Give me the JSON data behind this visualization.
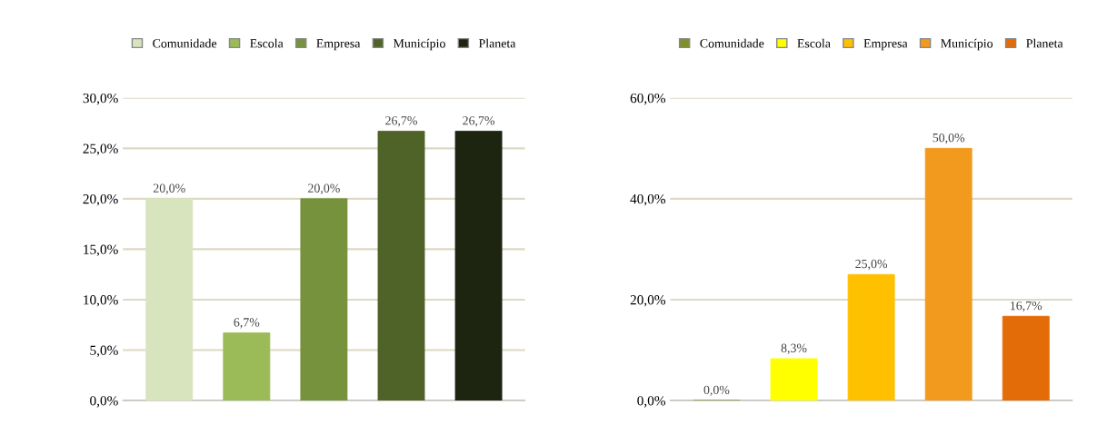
{
  "chart_data": [
    {
      "type": "bar",
      "categories": [
        null,
        null,
        null,
        null,
        null
      ],
      "legend": "top",
      "grid": "y",
      "ylim": [
        0,
        30
      ],
      "yticks": [
        {
          "value": 0,
          "label": "0,0%"
        },
        {
          "value": 5,
          "label": "5,0%"
        },
        {
          "value": 10,
          "label": "10,0%"
        },
        {
          "value": 15,
          "label": "15,0%"
        },
        {
          "value": 20,
          "label": "20,0%"
        },
        {
          "value": 25,
          "label": "25,0%"
        },
        {
          "value": 30,
          "label": "30,0%"
        }
      ],
      "series": [
        {
          "name": "Comunidade",
          "color": "#d7e4bd",
          "values": [
            20.0,
            null,
            null,
            null,
            null
          ],
          "value_labels": [
            "20,0%",
            null,
            null,
            null,
            null
          ]
        },
        {
          "name": "Escola",
          "color": "#9bbb59",
          "values": [
            null,
            6.7,
            null,
            null,
            null
          ],
          "value_labels": [
            null,
            "6,7%",
            null,
            null,
            null
          ]
        },
        {
          "name": "Empresa",
          "color": "#76923c",
          "values": [
            null,
            null,
            20.0,
            null,
            null
          ],
          "value_labels": [
            null,
            null,
            "20,0%",
            null,
            null
          ]
        },
        {
          "name": "Município",
          "color": "#4f6228",
          "values": [
            null,
            null,
            null,
            26.7,
            null
          ],
          "value_labels": [
            null,
            null,
            null,
            "26,7%",
            null
          ]
        },
        {
          "name": "Planeta",
          "color": "#1d2410",
          "values": [
            null,
            null,
            null,
            null,
            26.7
          ],
          "value_labels": [
            null,
            null,
            null,
            null,
            "26,7%"
          ]
        }
      ]
    },
    {
      "type": "bar",
      "categories": [
        null,
        null,
        null,
        null,
        null
      ],
      "legend": "top",
      "grid": "y",
      "ylim": [
        0,
        60
      ],
      "yticks": [
        {
          "value": 0,
          "label": "0,0%"
        },
        {
          "value": 20,
          "label": "20,0%"
        },
        {
          "value": 40,
          "label": "40,0%"
        },
        {
          "value": 60,
          "label": "60,0%"
        }
      ],
      "series": [
        {
          "name": "Comunidade",
          "color": "#7f8f2a",
          "values": [
            0.0,
            null,
            null,
            null,
            null
          ],
          "value_labels": [
            "0,0%",
            null,
            null,
            null,
            null
          ]
        },
        {
          "name": "Escola",
          "color": "#ffff00",
          "values": [
            null,
            8.3,
            null,
            null,
            null
          ],
          "value_labels": [
            null,
            "8,3%",
            null,
            null,
            null
          ]
        },
        {
          "name": "Empresa",
          "color": "#ffc000",
          "values": [
            null,
            null,
            25.0,
            null,
            null
          ],
          "value_labels": [
            null,
            null,
            "25,0%",
            null,
            null
          ]
        },
        {
          "name": "Município",
          "color": "#f29a1e",
          "values": [
            null,
            null,
            null,
            50.0,
            null
          ],
          "value_labels": [
            null,
            null,
            null,
            "50,0%",
            null
          ]
        },
        {
          "name": "Planeta",
          "color": "#e36c09",
          "values": [
            null,
            null,
            null,
            null,
            16.7
          ],
          "value_labels": [
            null,
            null,
            null,
            null,
            "16,7%"
          ]
        }
      ]
    }
  ]
}
